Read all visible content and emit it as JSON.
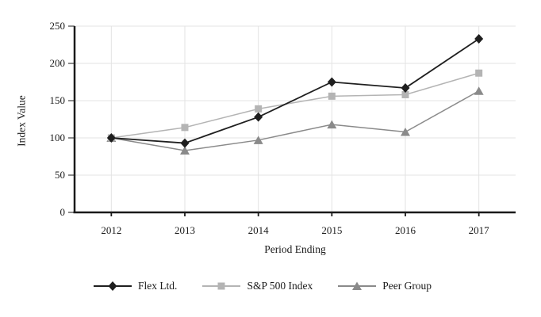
{
  "chart_data": {
    "type": "line",
    "title": "",
    "xlabel": "Period Ending",
    "ylabel": "Index Value",
    "categories": [
      "2012",
      "2013",
      "2014",
      "2015",
      "2016",
      "2017"
    ],
    "y_ticks": [
      0,
      50,
      100,
      150,
      200,
      250
    ],
    "ylim": [
      0,
      250
    ],
    "grid": true,
    "legend_position": "bottom",
    "series": [
      {
        "name": "Flex Ltd.",
        "marker": "diamond",
        "color": "#1f1f1f",
        "line_width": 1.8,
        "values": [
          100,
          93,
          128,
          175,
          167,
          233
        ]
      },
      {
        "name": "S&P 500 Index",
        "marker": "square",
        "color": "#b4b4b4",
        "line_width": 1.5,
        "values": [
          100,
          114,
          139,
          156,
          158,
          187
        ]
      },
      {
        "name": "Peer Group",
        "marker": "triangle",
        "color": "#8a8a8a",
        "line_width": 1.5,
        "values": [
          100,
          83,
          97,
          118,
          108,
          163
        ]
      }
    ],
    "colors": {
      "grid": "#e3e3e3",
      "axis": "#1a1a1a",
      "text": "#1a1a1a",
      "background": "#ffffff"
    }
  }
}
